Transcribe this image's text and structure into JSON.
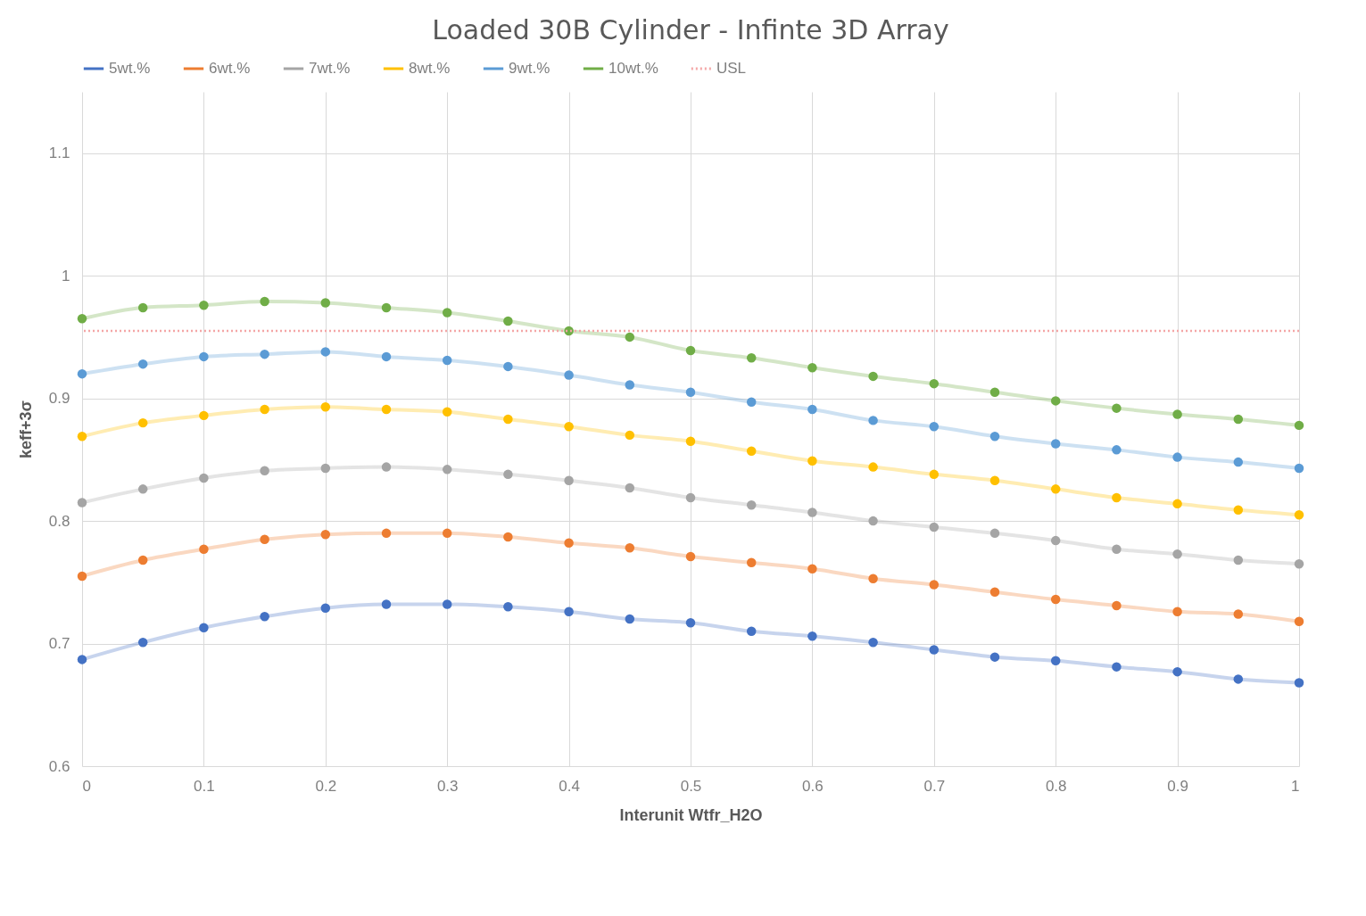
{
  "chart_data": {
    "type": "line",
    "title": "Loaded  30B Cylinder  - Infinte  3D Array",
    "xlabel": "Interunit Wtfr_H2O",
    "ylabel": "keff+3σ",
    "x": [
      0,
      0.05,
      0.1,
      0.15,
      0.2,
      0.25,
      0.3,
      0.35,
      0.4,
      0.45,
      0.5,
      0.55,
      0.6,
      0.65,
      0.7,
      0.75,
      0.8,
      0.85,
      0.9,
      0.95,
      1
    ],
    "series": [
      {
        "name": "5wt.%",
        "color": "#4472c4",
        "values": [
          0.687,
          0.701,
          0.713,
          0.722,
          0.729,
          0.732,
          0.732,
          0.73,
          0.726,
          0.72,
          0.717,
          0.71,
          0.706,
          0.701,
          0.695,
          0.689,
          0.686,
          0.681,
          0.677,
          0.671,
          0.668
        ]
      },
      {
        "name": "6wt.%",
        "color": "#ed7d31",
        "values": [
          0.755,
          0.768,
          0.777,
          0.785,
          0.789,
          0.79,
          0.79,
          0.787,
          0.782,
          0.778,
          0.771,
          0.766,
          0.761,
          0.753,
          0.748,
          0.742,
          0.736,
          0.731,
          0.726,
          0.724,
          0.718
        ]
      },
      {
        "name": "7wt.%",
        "color": "#a5a5a5",
        "values": [
          0.815,
          0.826,
          0.835,
          0.841,
          0.843,
          0.844,
          0.842,
          0.838,
          0.833,
          0.827,
          0.819,
          0.813,
          0.807,
          0.8,
          0.795,
          0.79,
          0.784,
          0.777,
          0.773,
          0.768,
          0.765
        ]
      },
      {
        "name": "8wt.%",
        "color": "#ffc000",
        "values": [
          0.869,
          0.88,
          0.886,
          0.891,
          0.893,
          0.891,
          0.889,
          0.883,
          0.877,
          0.87,
          0.865,
          0.857,
          0.849,
          0.844,
          0.838,
          0.833,
          0.826,
          0.819,
          0.814,
          0.809,
          0.805
        ]
      },
      {
        "name": "9wt.%",
        "color": "#5b9bd5",
        "values": [
          0.92,
          0.928,
          0.934,
          0.936,
          0.938,
          0.934,
          0.931,
          0.926,
          0.919,
          0.911,
          0.905,
          0.897,
          0.891,
          0.882,
          0.877,
          0.869,
          0.863,
          0.858,
          0.852,
          0.848,
          0.843
        ]
      },
      {
        "name": "10wt.%",
        "color": "#70ad47",
        "values": [
          0.965,
          0.974,
          0.976,
          0.979,
          0.978,
          0.974,
          0.97,
          0.963,
          0.955,
          0.95,
          0.939,
          0.933,
          0.925,
          0.918,
          0.912,
          0.905,
          0.898,
          0.892,
          0.887,
          0.883,
          0.878
        ]
      }
    ],
    "ref_lines": [
      {
        "axis": "y",
        "value": 0.955,
        "label": "USL",
        "color": "#f4a6a6",
        "line_style": "dotted"
      }
    ],
    "xlim": [
      0,
      1
    ],
    "xticks": [
      0,
      0.1,
      0.2,
      0.3,
      0.4,
      0.5,
      0.6,
      0.7,
      0.8,
      0.9,
      1
    ],
    "ylim": [
      0.6,
      1.15
    ],
    "yticks": [
      0.6,
      0.7,
      0.8,
      0.9,
      1,
      1.1
    ],
    "grid": true,
    "legend": "top",
    "marker": "circle",
    "line_style": "solid"
  }
}
